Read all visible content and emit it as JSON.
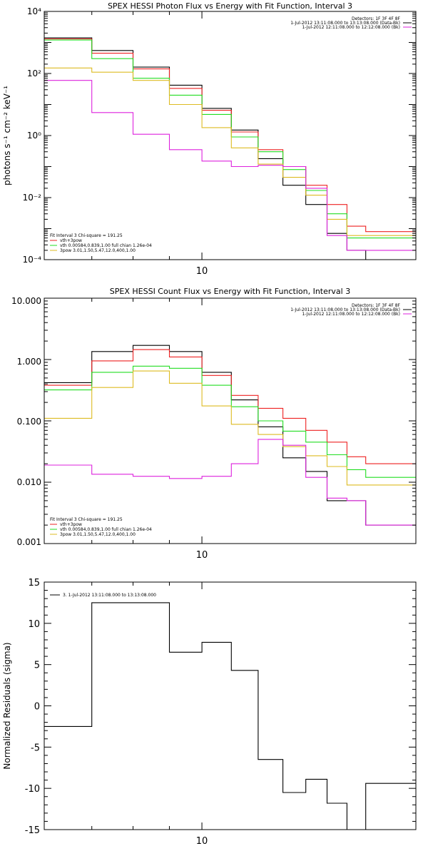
{
  "chart_data": [
    {
      "type": "line",
      "title": "SPEX HESSI Photon Flux vs Energy with Fit Function, Interval 3",
      "ylabel": "photons s⁻¹ cm⁻² keV⁻¹",
      "xlabel": "",
      "x_tick_label": "10",
      "y_tick_labels": [
        "10⁴",
        "10²",
        "10⁰",
        "10⁻²",
        "10⁻⁴"
      ],
      "yscale": "log",
      "ylim": [
        0.0001,
        10000
      ],
      "xlim": [
        6,
        20
      ],
      "xscale": "log",
      "grid": false,
      "bin_edges": [
        6,
        7,
        8,
        9,
        10,
        11,
        12,
        13,
        14,
        15,
        16,
        17,
        18,
        19,
        20
      ],
      "info_lines": [
        "Detectors: 1F 3F 4F 8F",
        "1-Jul-2012 13:11:08.000 to 13:13:08.000 (Data-Bk)",
        "1-Jul-2012 12:11:08.000 to 12:12:08.000 (Bk)"
      ],
      "info_line_colors": [
        "#000000",
        "#000000",
        "#dd22dd"
      ],
      "legend_lines": [
        "Fit Interval 3   Chi-square = 191.25",
        "vth+3pow",
        "vth 0.00584,0.839,1.00  full chian 1.26e-04",
        "3pow 3.01,1.50,5.47,12.0,400,1.00"
      ],
      "legend_line_colors": [
        "#000000",
        "#ee2222",
        "#22dd22",
        "#ddbb22"
      ],
      "series": [
        {
          "color": "#000000",
          "values": [
            1400,
            550,
            160,
            42,
            7.5,
            1.5,
            0.18,
            0.025,
            0.006,
            0.0007,
            0.0002,
            0.0001,
            0.0001,
            0.0001
          ]
        },
        {
          "color": "#ee2222",
          "values": [
            1300,
            450,
            140,
            33,
            6.5,
            1.3,
            0.35,
            0.1,
            0.025,
            0.006,
            0.0012,
            0.0008,
            0.0008,
            0.0008
          ]
        },
        {
          "color": "#22dd22",
          "values": [
            1200,
            300,
            70,
            20,
            4.8,
            0.9,
            0.3,
            0.08,
            0.017,
            0.003,
            0.0005,
            0.0005,
            0.0005,
            0.0005
          ]
        },
        {
          "color": "#ddbb22",
          "values": [
            150,
            110,
            60,
            10,
            1.8,
            0.4,
            0.12,
            0.045,
            0.012,
            0.002,
            0.0006,
            0.0006,
            0.0006,
            0.0006
          ]
        },
        {
          "color": "#dd22dd",
          "values": [
            60,
            5.5,
            1.1,
            0.35,
            0.15,
            0.1,
            0.11,
            0.1,
            0.02,
            0.0006,
            0.0002,
            0.0002,
            0.0002,
            0.0002
          ]
        }
      ]
    },
    {
      "type": "line",
      "title": "SPEX HESSI Count Flux vs Energy with Fit Function, Interval 3",
      "ylabel": "",
      "xlabel": "",
      "x_tick_label": "10",
      "y_tick_labels": [
        "10.000",
        "1.000",
        "0.100",
        "0.010",
        "0.001"
      ],
      "yscale": "log",
      "ylim": [
        0.001,
        10
      ],
      "xlim": [
        6,
        20
      ],
      "xscale": "log",
      "grid": false,
      "bin_edges": [
        6,
        7,
        8,
        9,
        10,
        11,
        12,
        13,
        14,
        15,
        16,
        17,
        18,
        19,
        20
      ],
      "info_lines": [
        "Detectors: 1F 3F 4F 8F",
        "1-Jul-2012 13:11:08.000 to 13:13:08.000 (Data-Bk)",
        "1-Jul-2012 12:11:08.000 to 12:12:08.000 (Bk)"
      ],
      "info_line_colors": [
        "#000000",
        "#000000",
        "#dd22dd"
      ],
      "legend_lines": [
        "Fit Interval 3   Chi-square = 191.25",
        "vth+3pow",
        "vth 0.00584,0.839,1.00  full chian 1.26e-04",
        "3pow 3.01,1.50,5.47,12.0,400,1.00"
      ],
      "legend_line_colors": [
        "#000000",
        "#ee2222",
        "#22dd22",
        "#ddbb22"
      ],
      "series": [
        {
          "color": "#000000",
          "values": [
            0.42,
            1.35,
            1.7,
            1.35,
            0.62,
            0.22,
            0.08,
            0.025,
            0.015,
            0.005,
            0.005,
            0.002,
            0.002,
            0.002
          ]
        },
        {
          "color": "#ee2222",
          "values": [
            0.38,
            0.95,
            1.45,
            1.1,
            0.55,
            0.26,
            0.16,
            0.11,
            0.07,
            0.045,
            0.026,
            0.02,
            0.02,
            0.02
          ]
        },
        {
          "color": "#22dd22",
          "values": [
            0.32,
            0.62,
            0.78,
            0.72,
            0.38,
            0.17,
            0.1,
            0.068,
            0.045,
            0.028,
            0.016,
            0.012,
            0.012,
            0.012
          ]
        },
        {
          "color": "#ddbb22",
          "values": [
            0.11,
            0.35,
            0.65,
            0.41,
            0.175,
            0.088,
            0.06,
            0.038,
            0.027,
            0.018,
            0.009,
            0.009,
            0.009,
            0.009
          ]
        },
        {
          "color": "#dd22dd",
          "values": [
            0.019,
            0.0135,
            0.0125,
            0.0115,
            0.0125,
            0.02,
            0.05,
            0.04,
            0.012,
            0.0055,
            0.005,
            0.002,
            0.002,
            0.002
          ]
        }
      ]
    },
    {
      "type": "line",
      "title": "",
      "ylabel": "Normalized Residuals (sigma)",
      "xlabel": "",
      "x_tick_label": "10",
      "yscale": "linear",
      "ylim": [
        -15,
        15
      ],
      "y_ticks": [
        15,
        10,
        5,
        0,
        -5,
        -10,
        -15
      ],
      "xlim": [
        6,
        20
      ],
      "xscale": "log",
      "grid": false,
      "bin_edges": [
        6,
        7,
        8,
        9,
        10,
        11,
        12,
        13,
        14,
        15,
        16,
        17,
        18,
        19,
        20
      ],
      "legend_lines": [
        "3.  1-Jul-2012 13:11:08.000 to 13:13:08.000"
      ],
      "series": [
        {
          "color": "#000000",
          "values": [
            -2.5,
            12.5,
            12.5,
            6.5,
            7.7,
            4.3,
            -6.5,
            -10.5,
            -8.9,
            -11.8,
            -15.3,
            -9.4,
            -9.4,
            -9.4
          ]
        }
      ]
    }
  ]
}
